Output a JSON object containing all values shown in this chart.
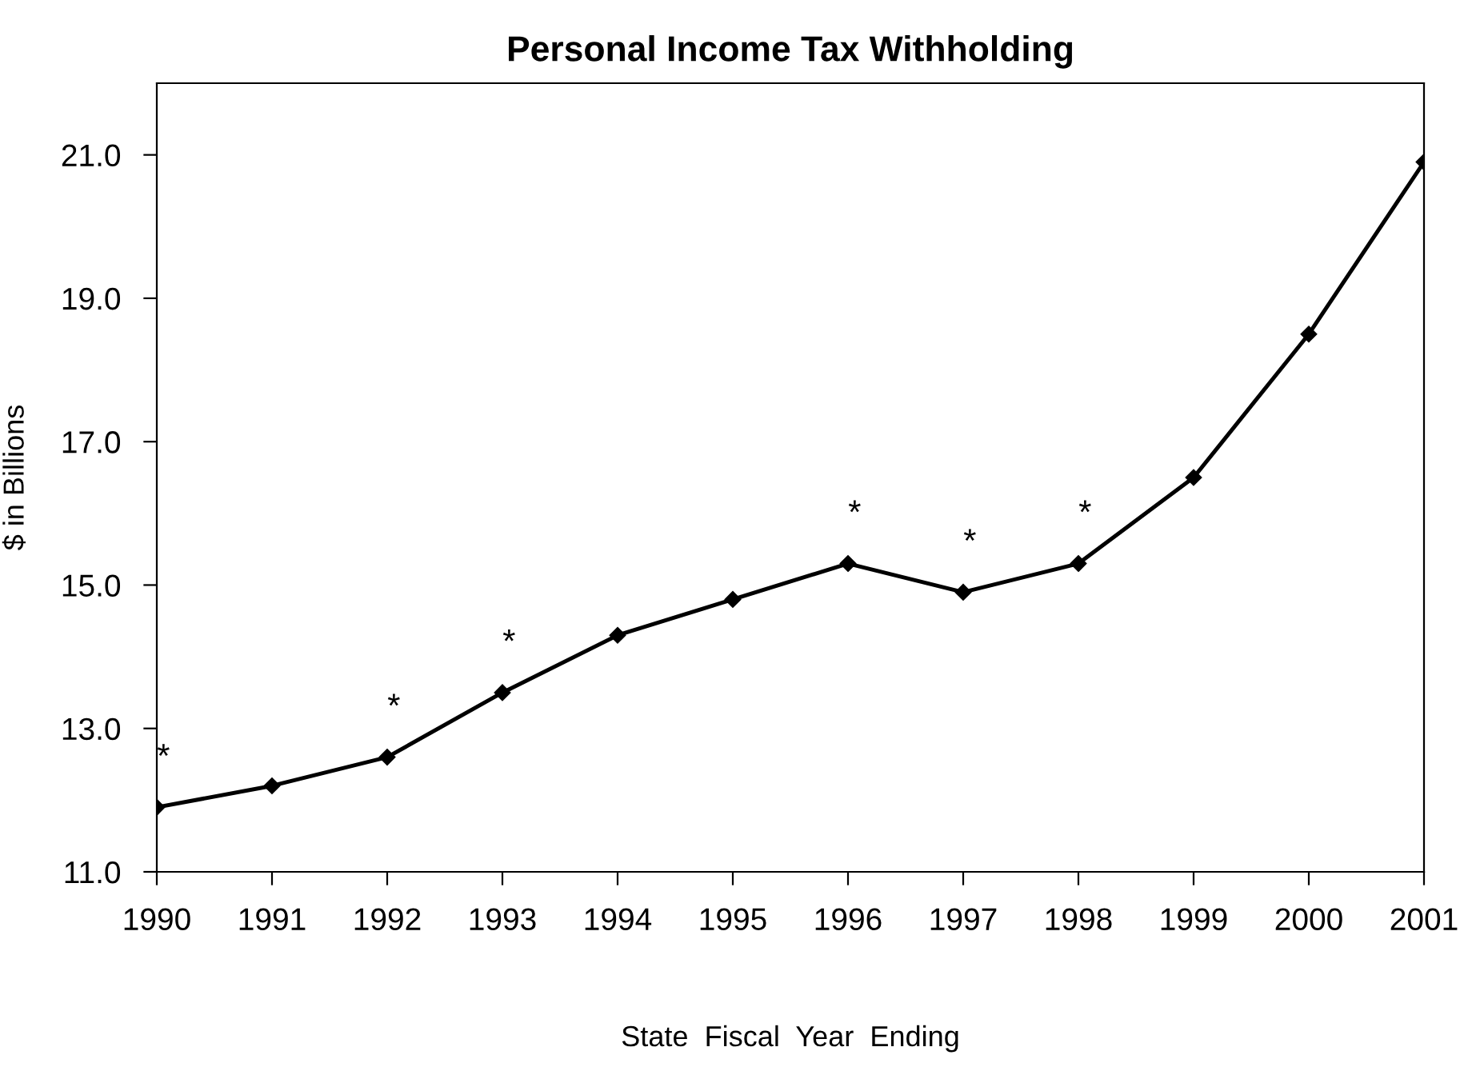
{
  "chart_data": {
    "type": "line",
    "title": "Personal Income Tax Withholding",
    "xlabel": "State  Fiscal  Year  Ending",
    "ylabel": "$ in Billions",
    "x": [
      1990,
      1991,
      1992,
      1993,
      1994,
      1995,
      1996,
      1997,
      1998,
      1999,
      2000,
      2001
    ],
    "series": [
      {
        "color": "#000000",
        "values": [
          11.9,
          12.2,
          12.6,
          13.5,
          14.3,
          14.8,
          15.3,
          14.9,
          15.3,
          16.5,
          18.5,
          20.9
        ]
      }
    ],
    "xlim": [
      1990,
      2001
    ],
    "xticks": [
      1990,
      1991,
      1992,
      1993,
      1994,
      1995,
      1996,
      1997,
      1998,
      1999,
      2000,
      2001
    ],
    "ylim": [
      11,
      22
    ],
    "yticks": [
      {
        "value": 11,
        "label": "11.0"
      },
      {
        "value": 13,
        "label": "13.0"
      },
      {
        "value": 15,
        "label": "15.0"
      },
      {
        "value": 17,
        "label": "17.0"
      },
      {
        "value": 19,
        "label": "19.0"
      },
      {
        "value": 21,
        "label": "21.0"
      }
    ],
    "annotations": [
      {
        "text": "*",
        "x": 1990,
        "y": 11.9
      },
      {
        "text": "*",
        "x": 1992,
        "y": 12.6
      },
      {
        "text": "*",
        "x": 1993,
        "y": 13.5
      },
      {
        "text": "*",
        "x": 1996,
        "y": 15.3
      },
      {
        "text": "*",
        "x": 1997,
        "y": 14.9
      },
      {
        "text": "*",
        "x": 1998,
        "y": 15.3
      }
    ],
    "grid": false,
    "legend": false,
    "marker": "diamond",
    "line_style": "solid"
  }
}
